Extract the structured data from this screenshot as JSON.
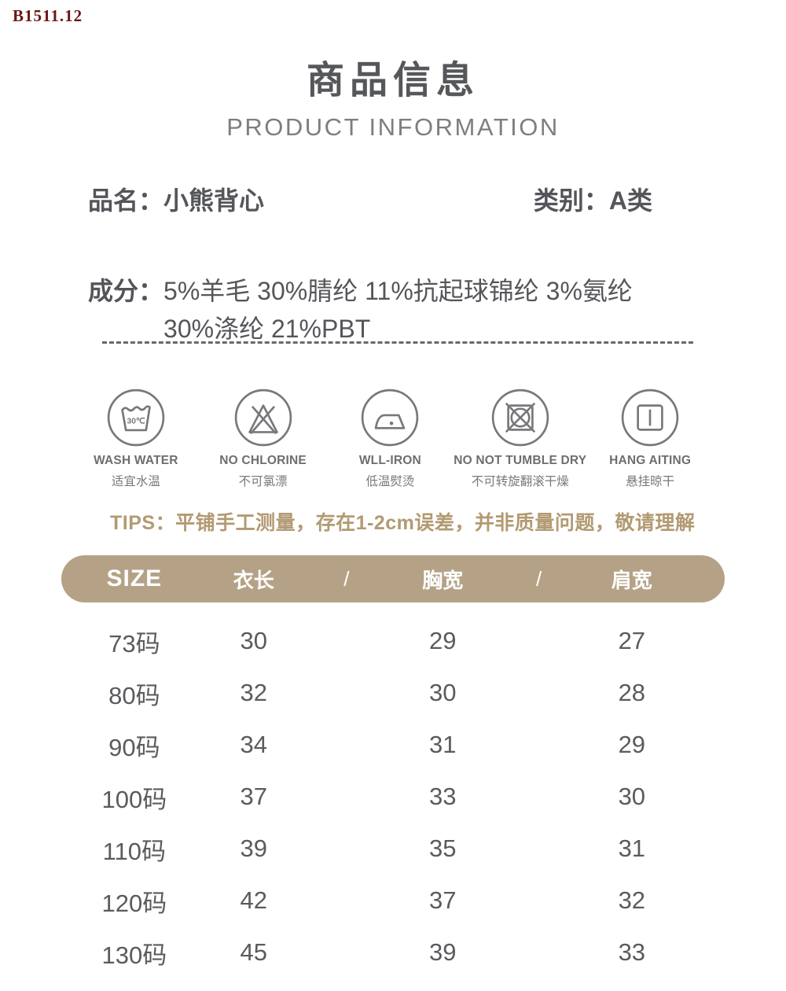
{
  "watermark": "B1511.12",
  "header": {
    "title_cn": "商品信息",
    "title_en": "PRODUCT INFORMATION"
  },
  "product": {
    "name_label": "品名：",
    "name_value": "小熊背心",
    "category_label": "类别：",
    "category_value": "A类",
    "composition_label": "成分：",
    "composition_line1": "5%羊毛 30%腈纶 11%抗起球锦纶 3%氨纶",
    "composition_line2": "30%涤纶 21%PBT"
  },
  "care_icons": [
    {
      "icon": "wash-water-30c-icon",
      "en": "WASH WATER",
      "cn": "适宜水温"
    },
    {
      "icon": "no-chlorine-icon",
      "en": "NO CHLORINE",
      "cn": "不可氯漂"
    },
    {
      "icon": "low-iron-icon",
      "en": "WLL-IRON",
      "cn": "低温熨烫"
    },
    {
      "icon": "no-tumble-dry-icon",
      "en": "NO NOT TUMBLE DRY",
      "cn": "不可转旋翻滚干燥"
    },
    {
      "icon": "hang-dry-icon",
      "en": "HANG AITING",
      "cn": "悬挂晾干"
    }
  ],
  "tips": {
    "label": "TIPS：",
    "text": "平铺手工测量，存在1-2cm误差，并非质量问题，敬请理解"
  },
  "size_table": {
    "header": [
      "SIZE",
      "衣长",
      "/",
      "胸宽",
      "/",
      "肩宽"
    ],
    "rows": [
      [
        "73码",
        "30",
        "29",
        "27"
      ],
      [
        "80码",
        "32",
        "30",
        "28"
      ],
      [
        "90码",
        "34",
        "31",
        "29"
      ],
      [
        "100码",
        "37",
        "33",
        "30"
      ],
      [
        "110码",
        "39",
        "35",
        "31"
      ],
      [
        "120码",
        "42",
        "37",
        "32"
      ],
      [
        "130码",
        "45",
        "39",
        "33"
      ]
    ]
  },
  "colors": {
    "accent_tan": "#b5a286",
    "tips_text": "#b29a72",
    "watermark_red": "#6b1616",
    "text_dark": "#56575a",
    "text_mid": "#77787c",
    "icon_stroke": "#77787b"
  }
}
